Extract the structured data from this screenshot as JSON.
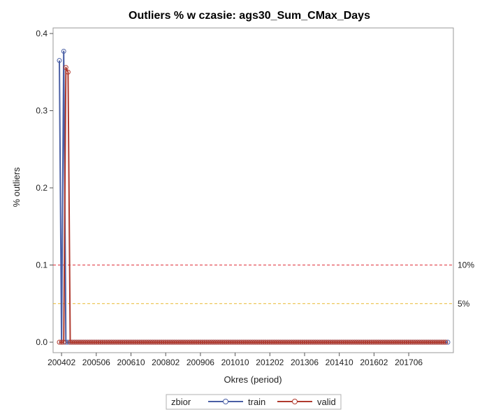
{
  "chart_data": {
    "type": "line",
    "title": "Outliers % w czasie: ags30_Sum_CMax_Days",
    "xlabel": "Okres (period)",
    "ylabel": "% outliers",
    "x_start": "200401",
    "x_end": "201812",
    "x_ticks": [
      "200402",
      "200506",
      "200610",
      "200802",
      "200906",
      "201010",
      "201202",
      "201306",
      "201410",
      "201602",
      "201706"
    ],
    "y_ticks": [
      "0.0",
      "0.1",
      "0.2",
      "0.3",
      "0.4"
    ],
    "ylim": [
      0,
      0.4
    ],
    "grid": false,
    "legend": {
      "position": "bottom",
      "title": "zbior"
    },
    "reference_lines": [
      {
        "label": "10%",
        "value": 0.1,
        "color": "#e0303a",
        "style": "dashed"
      },
      {
        "label": "5%",
        "value": 0.05,
        "color": "#e8b830",
        "style": "dashed"
      }
    ],
    "series": [
      {
        "name": "train",
        "color": "#4a5fa5",
        "points": [
          {
            "x": "200401",
            "y": 0.365
          },
          {
            "x": "200402",
            "y": 0.0
          },
          {
            "x": "200403",
            "y": 0.377
          },
          {
            "x": "200404",
            "y": 0.0
          },
          {
            "x": "200405",
            "y": 0.0
          },
          {
            "x": "200406",
            "y": 0.0
          }
        ],
        "zero_through": "201812"
      },
      {
        "name": "valid",
        "color": "#b03a2e",
        "points": [
          {
            "x": "200401",
            "y": 0.0
          },
          {
            "x": "200402",
            "y": 0.0
          },
          {
            "x": "200403",
            "y": 0.0
          },
          {
            "x": "200404",
            "y": 0.356
          },
          {
            "x": "200405",
            "y": 0.35
          },
          {
            "x": "200406",
            "y": 0.0
          }
        ],
        "zero_through": "201811"
      }
    ]
  }
}
